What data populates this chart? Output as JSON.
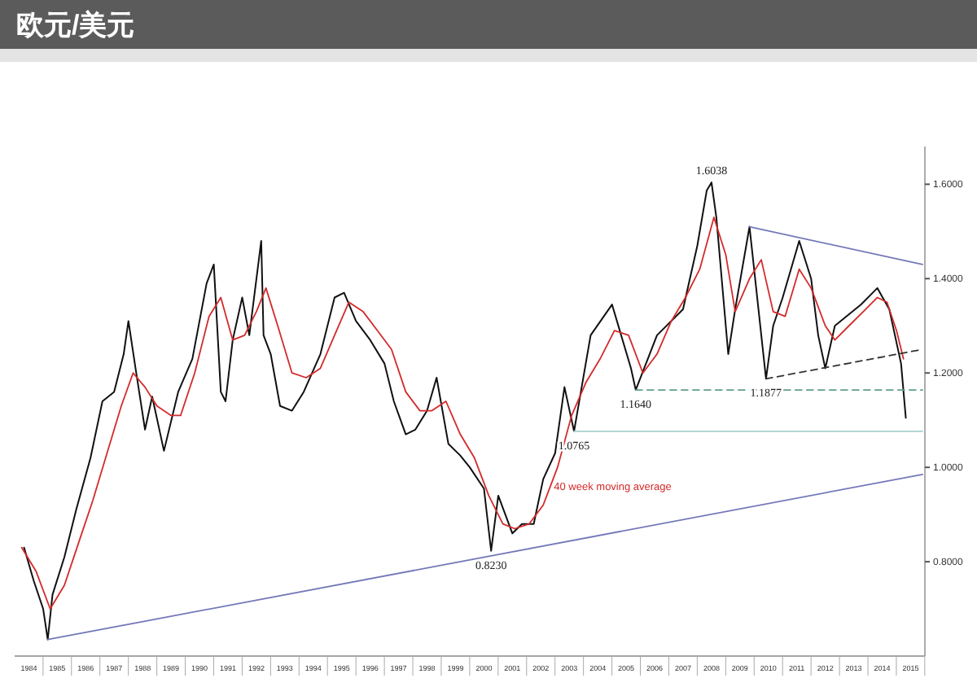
{
  "chart_data": {
    "type": "line",
    "title": "欧元/美元",
    "xlim": [
      "1984-01",
      "2016-01"
    ],
    "xticks": [
      {
        "value": "1984-07",
        "label": "1984"
      },
      {
        "value": "1985-07",
        "label": "1985"
      },
      {
        "value": "1986-07",
        "label": "1986"
      },
      {
        "value": "1987-07",
        "label": "1987"
      },
      {
        "value": "1988-07",
        "label": "1988"
      },
      {
        "value": "1989-07",
        "label": "1989"
      },
      {
        "value": "1990-07",
        "label": "1990"
      },
      {
        "value": "1991-07",
        "label": "1991"
      },
      {
        "value": "1992-07",
        "label": "1992"
      },
      {
        "value": "1993-07",
        "label": "1993"
      },
      {
        "value": "1994-07",
        "label": "1994"
      },
      {
        "value": "1995-07",
        "label": "1995"
      },
      {
        "value": "1996-07",
        "label": "1996"
      },
      {
        "value": "1997-07",
        "label": "1997"
      },
      {
        "value": "1998-07",
        "label": "1998"
      },
      {
        "value": "1999-07",
        "label": "1999"
      },
      {
        "value": "2000-07",
        "label": "2000"
      },
      {
        "value": "2001-07",
        "label": "2001"
      },
      {
        "value": "2002-07",
        "label": "2002"
      },
      {
        "value": "2003-07",
        "label": "2003"
      },
      {
        "value": "2004-07",
        "label": "2004"
      },
      {
        "value": "2005-07",
        "label": "2005"
      },
      {
        "value": "2006-07",
        "label": "2006"
      },
      {
        "value": "2007-07",
        "label": "2007"
      },
      {
        "value": "2008-07",
        "label": "2008"
      },
      {
        "value": "2009-07",
        "label": "2009"
      },
      {
        "value": "2010-07",
        "label": "2010"
      },
      {
        "value": "2011-07",
        "label": "2011"
      },
      {
        "value": "2012-07",
        "label": "2012"
      },
      {
        "value": "2013-07",
        "label": "2013"
      },
      {
        "value": "2014-07",
        "label": "2014"
      },
      {
        "value": "2015-07",
        "label": "2015"
      }
    ],
    "ylim": [
      0.6,
      1.68
    ],
    "yticks": [
      {
        "value": 0.8,
        "label": "0.8000"
      },
      {
        "value": 1.0,
        "label": "1.0000"
      },
      {
        "value": 1.2,
        "label": "1.2000"
      },
      {
        "value": 1.4,
        "label": "1.4000"
      },
      {
        "value": 1.6,
        "label": "1.6000"
      }
    ],
    "grid": false,
    "series": [
      {
        "color": "#111111",
        "x": [
          "1984-05",
          "1984-09",
          "1985-01",
          "1985-03",
          "1985-05",
          "1985-10",
          "1986-03",
          "1986-09",
          "1987-02",
          "1987-07",
          "1987-11",
          "1988-01",
          "1988-04",
          "1988-08",
          "1988-11",
          "1989-04",
          "1989-10",
          "1990-04",
          "1990-10",
          "1991-01",
          "1991-04",
          "1991-06",
          "1991-09",
          "1992-01",
          "1992-04",
          "1992-09",
          "1992-10",
          "1993-01",
          "1993-05",
          "1993-10",
          "1994-03",
          "1994-10",
          "1995-04",
          "1995-08",
          "1996-01",
          "1996-07",
          "1997-01",
          "1997-05",
          "1997-10",
          "1998-02",
          "1998-07",
          "1998-11",
          "1999-04",
          "1999-09",
          "2000-01",
          "2000-07",
          "2000-10",
          "2001-01",
          "2001-07",
          "2001-11",
          "2002-04",
          "2002-08",
          "2003-01",
          "2003-05",
          "2003-09",
          "2004-04",
          "2005-01",
          "2005-09",
          "2005-11",
          "2006-08",
          "2007-07",
          "2008-01",
          "2008-05",
          "2008-07",
          "2008-09",
          "2009-02",
          "2009-05",
          "2009-11",
          "2010-06",
          "2010-09",
          "2011-01",
          "2011-08",
          "2012-01",
          "2012-04",
          "2012-07",
          "2012-11",
          "2013-10",
          "2014-05",
          "2014-10",
          "2015-03",
          "2015-05"
        ],
        "values": [
          0.83,
          0.76,
          0.7,
          0.635,
          0.73,
          0.81,
          0.91,
          1.02,
          1.14,
          1.16,
          1.24,
          1.31,
          1.21,
          1.08,
          1.15,
          1.035,
          1.16,
          1.23,
          1.39,
          1.43,
          1.16,
          1.14,
          1.27,
          1.36,
          1.28,
          1.48,
          1.28,
          1.24,
          1.13,
          1.12,
          1.16,
          1.24,
          1.36,
          1.37,
          1.31,
          1.27,
          1.22,
          1.14,
          1.07,
          1.08,
          1.12,
          1.19,
          1.05,
          1.025,
          1.0,
          0.955,
          0.823,
          0.94,
          0.86,
          0.88,
          0.88,
          0.975,
          1.03,
          1.17,
          1.0765,
          1.28,
          1.345,
          1.21,
          1.164,
          1.28,
          1.335,
          1.47,
          1.587,
          1.6038,
          1.53,
          1.24,
          1.335,
          1.51,
          1.1877,
          1.3,
          1.36,
          1.48,
          1.4,
          1.28,
          1.21,
          1.3,
          1.345,
          1.38,
          1.335,
          1.22,
          1.105
        ]
      },
      {
        "name": "40 week moving average",
        "color": "#d42a2a",
        "x": [
          "1984-04",
          "1984-10",
          "1985-04",
          "1985-10",
          "1986-04",
          "1986-10",
          "1987-04",
          "1987-10",
          "1988-03",
          "1988-08",
          "1989-01",
          "1989-07",
          "1989-11",
          "1990-05",
          "1990-11",
          "1991-04",
          "1991-09",
          "1992-02",
          "1992-07",
          "1992-11",
          "1993-04",
          "1993-10",
          "1994-04",
          "1994-10",
          "1995-04",
          "1995-10",
          "1996-04",
          "1996-10",
          "1997-04",
          "1997-10",
          "1998-04",
          "1998-09",
          "1999-03",
          "1999-09",
          "2000-03",
          "2000-09",
          "2001-03",
          "2001-08",
          "2002-02",
          "2002-08",
          "2003-02",
          "2003-08",
          "2004-02",
          "2004-08",
          "2005-02",
          "2005-08",
          "2006-02",
          "2006-08",
          "2007-02",
          "2007-08",
          "2008-02",
          "2008-08",
          "2009-01",
          "2009-05",
          "2009-11",
          "2010-04",
          "2010-09",
          "2011-02",
          "2011-08",
          "2012-01",
          "2012-07",
          "2012-11",
          "2013-05",
          "2013-11",
          "2014-05",
          "2014-09",
          "2015-01",
          "2015-04"
        ],
        "values": [
          0.83,
          0.78,
          0.7,
          0.75,
          0.84,
          0.93,
          1.03,
          1.13,
          1.2,
          1.17,
          1.13,
          1.11,
          1.11,
          1.2,
          1.32,
          1.36,
          1.27,
          1.28,
          1.33,
          1.38,
          1.3,
          1.2,
          1.19,
          1.21,
          1.28,
          1.35,
          1.33,
          1.29,
          1.25,
          1.16,
          1.12,
          1.12,
          1.14,
          1.07,
          1.02,
          0.94,
          0.88,
          0.87,
          0.88,
          0.92,
          1.0,
          1.11,
          1.18,
          1.23,
          1.29,
          1.28,
          1.2,
          1.24,
          1.31,
          1.36,
          1.42,
          1.53,
          1.45,
          1.33,
          1.4,
          1.44,
          1.33,
          1.32,
          1.42,
          1.38,
          1.3,
          1.27,
          1.3,
          1.33,
          1.36,
          1.35,
          1.29,
          1.23
        ]
      },
      {
        "color": "#7478b8",
        "x": [
          "1985-03",
          "2015-12"
        ],
        "values": [
          0.635,
          0.985
        ]
      },
      {
        "color": "#7478b8",
        "x": [
          "2009-11",
          "2015-12"
        ],
        "values": [
          1.51,
          1.43
        ]
      },
      {
        "color": "#333333",
        "line_style": "dashed",
        "x": [
          "2010-06",
          "2015-12"
        ],
        "values": [
          1.1877,
          1.25
        ]
      },
      {
        "color": "#5f9e8e",
        "line_style": "dashed",
        "x": [
          "2005-11",
          "2015-12"
        ],
        "values": [
          1.164,
          1.164
        ]
      },
      {
        "color": "#a8d0d0",
        "x": [
          "2003-09",
          "2015-12"
        ],
        "values": [
          1.0765,
          1.0765
        ]
      }
    ],
    "annotations": [
      {
        "text": "1.6038",
        "x": "2008-07",
        "y": 1.6038
      },
      {
        "text": "0.8230",
        "x": "2000-10",
        "y": 0.823
      },
      {
        "text": "1.1640",
        "x": "2005-11",
        "y": 1.164
      },
      {
        "text": "1.1877",
        "x": "2010-06",
        "y": 1.1877
      },
      {
        "text": "1.0765",
        "x": "2003-09",
        "y": 1.0765
      }
    ]
  }
}
